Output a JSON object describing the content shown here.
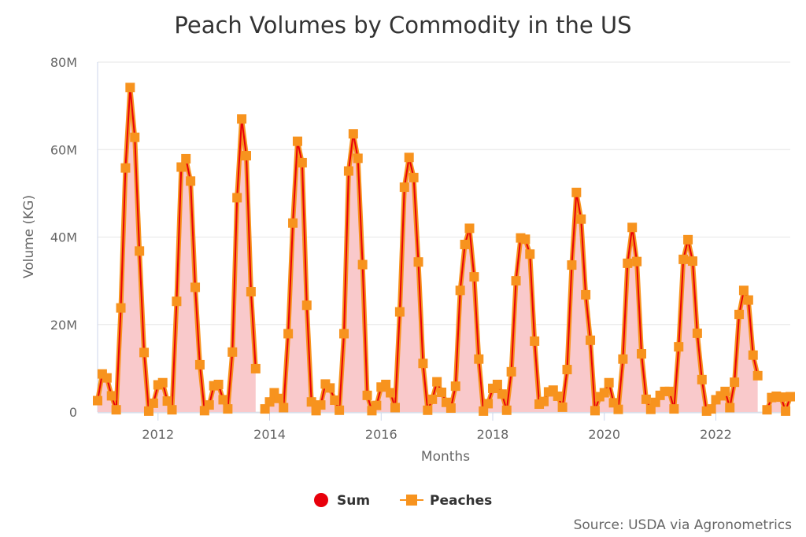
{
  "chart_data": {
    "type": "area",
    "title": "Peach Volumes by Commodity in the US",
    "xlabel": "Months",
    "ylabel": "Volume (KG)",
    "xlim": [
      "2010-12",
      "2023-05"
    ],
    "ylim": [
      0,
      80000000
    ],
    "y_ticks": [
      {
        "value": 0,
        "label": "0"
      },
      {
        "value": 20000000,
        "label": "20M"
      },
      {
        "value": 40000000,
        "label": "40M"
      },
      {
        "value": 60000000,
        "label": "60M"
      },
      {
        "value": 80000000,
        "label": "80M"
      }
    ],
    "x_ticks": [
      {
        "value": "2012-01",
        "label": "2012"
      },
      {
        "value": "2014-01",
        "label": "2014"
      },
      {
        "value": "2016-01",
        "label": "2016"
      },
      {
        "value": "2018-01",
        "label": "2018"
      },
      {
        "value": "2020-01",
        "label": "2020"
      },
      {
        "value": "2022-01",
        "label": "2022"
      }
    ],
    "grid": true,
    "legend_position": "bottom-center",
    "series": [
      {
        "name": "Sum",
        "color": "#e8000b",
        "marker": "circle",
        "fill": "#f9c9cb"
      },
      {
        "name": "Peaches",
        "color": "#f7931e",
        "marker": "square"
      }
    ],
    "points": [
      [
        "2010-12",
        2600000
      ],
      [
        "2011-01",
        8700000
      ],
      [
        "2011-02",
        7800000
      ],
      [
        "2011-03",
        3700000
      ],
      [
        "2011-04",
        500000
      ],
      [
        "2011-05",
        23800000
      ],
      [
        "2011-06",
        55800000
      ],
      [
        "2011-07",
        74200000
      ],
      [
        "2011-08",
        62800000
      ],
      [
        "2011-09",
        36800000
      ],
      [
        "2011-10",
        13600000
      ],
      [
        "2011-11",
        200000
      ],
      [
        "2011-12",
        2000000
      ],
      [
        "2012-01",
        6200000
      ],
      [
        "2012-02",
        6700000
      ],
      [
        "2012-03",
        2500000
      ],
      [
        "2012-04",
        500000
      ],
      [
        "2012-05",
        25300000
      ],
      [
        "2012-06",
        56000000
      ],
      [
        "2012-07",
        57900000
      ],
      [
        "2012-08",
        52800000
      ],
      [
        "2012-09",
        28500000
      ],
      [
        "2012-10",
        10800000
      ],
      [
        "2012-11",
        300000
      ],
      [
        "2012-12",
        1600000
      ],
      [
        "2013-01",
        6000000
      ],
      [
        "2013-02",
        6300000
      ],
      [
        "2013-03",
        2800000
      ],
      [
        "2013-04",
        700000
      ],
      [
        "2013-05",
        13700000
      ],
      [
        "2013-06",
        49000000
      ],
      [
        "2013-07",
        67000000
      ],
      [
        "2013-08",
        58600000
      ],
      [
        "2013-09",
        27500000
      ],
      [
        "2013-10",
        9900000
      ],
      [
        "2013-11",
        null
      ],
      [
        "2013-12",
        700000
      ],
      [
        "2014-01",
        2300000
      ],
      [
        "2014-02",
        4400000
      ],
      [
        "2014-03",
        3100000
      ],
      [
        "2014-04",
        1000000
      ],
      [
        "2014-05",
        17900000
      ],
      [
        "2014-06",
        43200000
      ],
      [
        "2014-07",
        61900000
      ],
      [
        "2014-08",
        57000000
      ],
      [
        "2014-09",
        24400000
      ],
      [
        "2014-10",
        2300000
      ],
      [
        "2014-11",
        300000
      ],
      [
        "2014-12",
        1600000
      ],
      [
        "2015-01",
        6400000
      ],
      [
        "2015-02",
        5500000
      ],
      [
        "2015-03",
        2700000
      ],
      [
        "2015-04",
        400000
      ],
      [
        "2015-05",
        17900000
      ],
      [
        "2015-06",
        55100000
      ],
      [
        "2015-07",
        63600000
      ],
      [
        "2015-08",
        58000000
      ],
      [
        "2015-09",
        33700000
      ],
      [
        "2015-10",
        3800000
      ],
      [
        "2015-11",
        300000
      ],
      [
        "2015-12",
        1500000
      ],
      [
        "2016-01",
        5700000
      ],
      [
        "2016-02",
        6300000
      ],
      [
        "2016-03",
        4400000
      ],
      [
        "2016-04",
        1000000
      ],
      [
        "2016-05",
        22900000
      ],
      [
        "2016-06",
        51400000
      ],
      [
        "2016-07",
        58200000
      ],
      [
        "2016-08",
        53600000
      ],
      [
        "2016-09",
        34300000
      ],
      [
        "2016-10",
        11100000
      ],
      [
        "2016-11",
        400000
      ],
      [
        "2016-12",
        2900000
      ],
      [
        "2017-01",
        6900000
      ],
      [
        "2017-02",
        4500000
      ],
      [
        "2017-03",
        2200000
      ],
      [
        "2017-04",
        900000
      ],
      [
        "2017-05",
        5900000
      ],
      [
        "2017-06",
        27800000
      ],
      [
        "2017-07",
        38300000
      ],
      [
        "2017-08",
        42000000
      ],
      [
        "2017-09",
        30900000
      ],
      [
        "2017-10",
        12100000
      ],
      [
        "2017-11",
        200000
      ],
      [
        "2017-12",
        1900000
      ],
      [
        "2018-01",
        5400000
      ],
      [
        "2018-02",
        6300000
      ],
      [
        "2018-03",
        4100000
      ],
      [
        "2018-04",
        400000
      ],
      [
        "2018-05",
        9200000
      ],
      [
        "2018-06",
        30000000
      ],
      [
        "2018-07",
        39800000
      ],
      [
        "2018-08",
        39500000
      ],
      [
        "2018-09",
        36100000
      ],
      [
        "2018-10",
        16200000
      ],
      [
        "2018-11",
        1800000
      ],
      [
        "2018-12",
        2400000
      ],
      [
        "2019-01",
        4600000
      ],
      [
        "2019-02",
        5000000
      ],
      [
        "2019-03",
        3600000
      ],
      [
        "2019-04",
        1100000
      ],
      [
        "2019-05",
        9700000
      ],
      [
        "2019-06",
        33600000
      ],
      [
        "2019-07",
        50200000
      ],
      [
        "2019-08",
        44100000
      ],
      [
        "2019-09",
        26800000
      ],
      [
        "2019-10",
        16400000
      ],
      [
        "2019-11",
        300000
      ],
      [
        "2019-12",
        3500000
      ],
      [
        "2020-01",
        4400000
      ],
      [
        "2020-02",
        6700000
      ],
      [
        "2020-03",
        2100000
      ],
      [
        "2020-04",
        600000
      ],
      [
        "2020-05",
        12100000
      ],
      [
        "2020-06",
        34000000
      ],
      [
        "2020-07",
        42200000
      ],
      [
        "2020-08",
        34400000
      ],
      [
        "2020-09",
        13300000
      ],
      [
        "2020-10",
        2900000
      ],
      [
        "2020-11",
        600000
      ],
      [
        "2020-12",
        2200000
      ],
      [
        "2021-01",
        3800000
      ],
      [
        "2021-02",
        4700000
      ],
      [
        "2021-03",
        4700000
      ],
      [
        "2021-04",
        700000
      ],
      [
        "2021-05",
        14900000
      ],
      [
        "2021-06",
        34900000
      ],
      [
        "2021-07",
        39400000
      ],
      [
        "2021-08",
        34500000
      ],
      [
        "2021-09",
        18000000
      ],
      [
        "2021-10",
        7400000
      ],
      [
        "2021-11",
        200000
      ],
      [
        "2021-12",
        700000
      ],
      [
        "2022-01",
        2800000
      ],
      [
        "2022-02",
        3700000
      ],
      [
        "2022-03",
        4700000
      ],
      [
        "2022-04",
        1000000
      ],
      [
        "2022-05",
        6800000
      ],
      [
        "2022-06",
        22300000
      ],
      [
        "2022-07",
        27800000
      ],
      [
        "2022-08",
        25600000
      ],
      [
        "2022-09",
        13000000
      ],
      [
        "2022-10",
        8300000
      ],
      [
        "2022-11",
        null
      ],
      [
        "2022-12",
        500000
      ],
      [
        "2023-01",
        3300000
      ],
      [
        "2023-02",
        3600000
      ],
      [
        "2023-03",
        3400000
      ],
      [
        "2023-04",
        200000
      ],
      [
        "2023-05",
        3500000
      ]
    ]
  },
  "credit": "Source: USDA via Agronometrics"
}
